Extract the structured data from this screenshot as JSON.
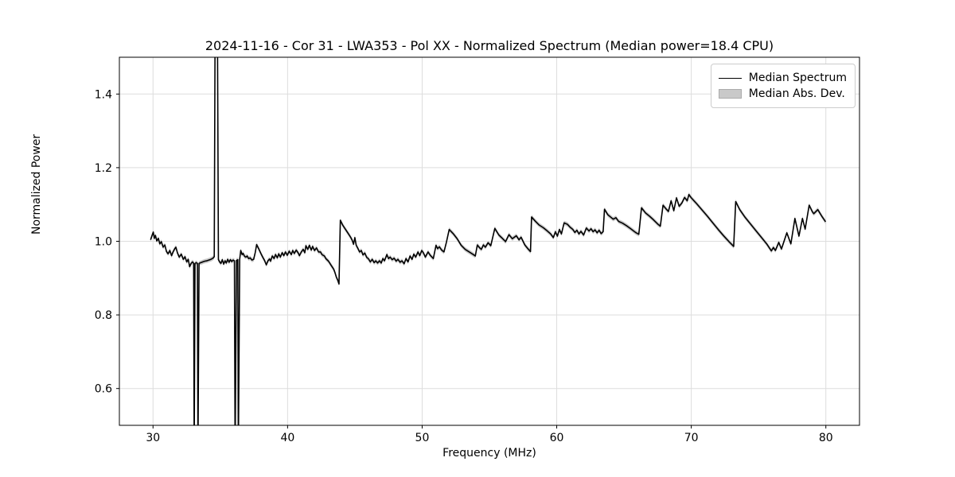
{
  "chart_data": {
    "type": "line",
    "title": "2024-11-16 - Cor 31 - LWA353 - Pol XX - Normalized Spectrum (Median power=18.4 CPU)",
    "xlabel": "Frequency (MHz)",
    "ylabel": "Normalized Power",
    "xlim": [
      27.5,
      82.5
    ],
    "ylim": [
      0.5,
      1.5
    ],
    "xticks": [
      {
        "v": 30,
        "label": "30"
      },
      {
        "v": 40,
        "label": "40"
      },
      {
        "v": 50,
        "label": "50"
      },
      {
        "v": 60,
        "label": "60"
      },
      {
        "v": 70,
        "label": "70"
      },
      {
        "v": 80,
        "label": "80"
      }
    ],
    "yticks": [
      {
        "v": 0.6,
        "label": "0.6"
      },
      {
        "v": 0.8,
        "label": "0.8"
      },
      {
        "v": 1.0,
        "label": "1.0"
      },
      {
        "v": 1.2,
        "label": "1.2"
      },
      {
        "v": 1.4,
        "label": "1.4"
      }
    ],
    "grid": true,
    "grid_color": "#dddddd",
    "spine_color": "#000000",
    "legend": {
      "position": "upper right",
      "items": [
        {
          "label": "Median Spectrum",
          "type": "line",
          "color": "#000000"
        },
        {
          "label": "Median Abs. Dev.",
          "type": "patch",
          "color": "#c9c9c9",
          "edge": "#ababab"
        }
      ]
    },
    "band": {
      "name": "Median Abs. Dev.",
      "halfwidth": 0.006,
      "color": "#c9c9c9"
    },
    "series": [
      {
        "name": "Median Spectrum",
        "color": "#000000",
        "width": 1.6,
        "points": [
          [
            29.82,
            1.004
          ],
          [
            29.95,
            1.018
          ],
          [
            30.02,
            1.025
          ],
          [
            30.1,
            1.008
          ],
          [
            30.18,
            1.016
          ],
          [
            30.28,
            1.001
          ],
          [
            30.4,
            1.008
          ],
          [
            30.5,
            0.993
          ],
          [
            30.62,
            0.999
          ],
          [
            30.75,
            0.984
          ],
          [
            30.88,
            0.99
          ],
          [
            31.0,
            0.972
          ],
          [
            31.12,
            0.966
          ],
          [
            31.25,
            0.975
          ],
          [
            31.38,
            0.961
          ],
          [
            31.5,
            0.972
          ],
          [
            31.62,
            0.98
          ],
          [
            31.7,
            0.984
          ],
          [
            31.82,
            0.968
          ],
          [
            31.95,
            0.957
          ],
          [
            32.1,
            0.965
          ],
          [
            32.25,
            0.951
          ],
          [
            32.38,
            0.958
          ],
          [
            32.5,
            0.944
          ],
          [
            32.62,
            0.951
          ],
          [
            32.72,
            0.931
          ],
          [
            32.85,
            0.941
          ],
          [
            32.95,
            0.944
          ],
          [
            33.02,
            0.94
          ],
          [
            33.06,
            0.42
          ],
          [
            33.12,
            0.94
          ],
          [
            33.22,
            0.942
          ],
          [
            33.3,
            0.94
          ],
          [
            33.34,
            0.42
          ],
          [
            33.42,
            0.94
          ],
          [
            33.55,
            0.942
          ],
          [
            33.7,
            0.944
          ],
          [
            33.85,
            0.946
          ],
          [
            34.0,
            0.947
          ],
          [
            34.15,
            0.949
          ],
          [
            34.3,
            0.951
          ],
          [
            34.45,
            0.954
          ],
          [
            34.55,
            0.958
          ],
          [
            34.62,
            1.65
          ],
          [
            34.78,
            1.65
          ],
          [
            34.86,
            0.95
          ],
          [
            34.95,
            0.944
          ],
          [
            35.05,
            0.94
          ],
          [
            35.15,
            0.95
          ],
          [
            35.25,
            0.938
          ],
          [
            35.35,
            0.947
          ],
          [
            35.45,
            0.941
          ],
          [
            35.55,
            0.951
          ],
          [
            35.65,
            0.943
          ],
          [
            35.75,
            0.95
          ],
          [
            35.85,
            0.945
          ],
          [
            35.95,
            0.949
          ],
          [
            36.05,
            0.947
          ],
          [
            36.1,
            0.42
          ],
          [
            36.2,
            0.948
          ],
          [
            36.3,
            0.95
          ],
          [
            36.34,
            0.42
          ],
          [
            36.44,
            0.951
          ],
          [
            36.52,
            0.975
          ],
          [
            36.62,
            0.964
          ],
          [
            36.7,
            0.967
          ],
          [
            36.8,
            0.959
          ],
          [
            36.9,
            0.957
          ],
          [
            37.0,
            0.96
          ],
          [
            37.1,
            0.953
          ],
          [
            37.22,
            0.955
          ],
          [
            37.35,
            0.949
          ],
          [
            37.48,
            0.951
          ],
          [
            37.6,
            0.97
          ],
          [
            37.7,
            0.991
          ],
          [
            37.85,
            0.98
          ],
          [
            38.0,
            0.968
          ],
          [
            38.15,
            0.957
          ],
          [
            38.3,
            0.947
          ],
          [
            38.42,
            0.936
          ],
          [
            38.54,
            0.947
          ],
          [
            38.66,
            0.952
          ],
          [
            38.74,
            0.946
          ],
          [
            38.86,
            0.96
          ],
          [
            39.0,
            0.953
          ],
          [
            39.1,
            0.964
          ],
          [
            39.24,
            0.955
          ],
          [
            39.34,
            0.966
          ],
          [
            39.46,
            0.957
          ],
          [
            39.6,
            0.969
          ],
          [
            39.72,
            0.961
          ],
          [
            39.84,
            0.971
          ],
          [
            39.98,
            0.962
          ],
          [
            40.12,
            0.973
          ],
          [
            40.28,
            0.964
          ],
          [
            40.38,
            0.975
          ],
          [
            40.5,
            0.967
          ],
          [
            40.64,
            0.976
          ],
          [
            40.78,
            0.969
          ],
          [
            40.88,
            0.961
          ],
          [
            41.02,
            0.971
          ],
          [
            41.16,
            0.978
          ],
          [
            41.28,
            0.969
          ],
          [
            41.36,
            0.988
          ],
          [
            41.5,
            0.978
          ],
          [
            41.62,
            0.989
          ],
          [
            41.76,
            0.976
          ],
          [
            41.86,
            0.986
          ],
          [
            42.0,
            0.975
          ],
          [
            42.15,
            0.982
          ],
          [
            42.3,
            0.971
          ],
          [
            42.45,
            0.971
          ],
          [
            42.55,
            0.964
          ],
          [
            42.74,
            0.96
          ],
          [
            42.84,
            0.953
          ],
          [
            43.04,
            0.946
          ],
          [
            43.23,
            0.935
          ],
          [
            43.43,
            0.924
          ],
          [
            43.53,
            0.914
          ],
          [
            43.62,
            0.903
          ],
          [
            43.72,
            0.895
          ],
          [
            43.82,
            0.884
          ],
          [
            43.92,
            1.057
          ],
          [
            44.11,
            1.043
          ],
          [
            44.31,
            1.032
          ],
          [
            44.51,
            1.021
          ],
          [
            44.7,
            1.01
          ],
          [
            44.8,
            1.003
          ],
          [
            44.9,
            0.992
          ],
          [
            45.0,
            1.01
          ],
          [
            45.1,
            0.989
          ],
          [
            45.22,
            0.981
          ],
          [
            45.35,
            0.971
          ],
          [
            45.48,
            0.975
          ],
          [
            45.6,
            0.963
          ],
          [
            45.74,
            0.968
          ],
          [
            45.88,
            0.956
          ],
          [
            46.0,
            0.953
          ],
          [
            46.15,
            0.944
          ],
          [
            46.29,
            0.951
          ],
          [
            46.43,
            0.942
          ],
          [
            46.55,
            0.947
          ],
          [
            46.69,
            0.941
          ],
          [
            46.83,
            0.947
          ],
          [
            46.96,
            0.941
          ],
          [
            47.08,
            0.953
          ],
          [
            47.2,
            0.947
          ],
          [
            47.38,
            0.964
          ],
          [
            47.5,
            0.953
          ],
          [
            47.62,
            0.957
          ],
          [
            47.77,
            0.95
          ],
          [
            47.92,
            0.954
          ],
          [
            48.07,
            0.946
          ],
          [
            48.2,
            0.951
          ],
          [
            48.36,
            0.943
          ],
          [
            48.5,
            0.947
          ],
          [
            48.66,
            0.939
          ],
          [
            48.8,
            0.953
          ],
          [
            48.95,
            0.944
          ],
          [
            49.1,
            0.96
          ],
          [
            49.25,
            0.951
          ],
          [
            49.38,
            0.965
          ],
          [
            49.52,
            0.957
          ],
          [
            49.69,
            0.971
          ],
          [
            49.82,
            0.961
          ],
          [
            49.97,
            0.975
          ],
          [
            50.1,
            0.968
          ],
          [
            50.24,
            0.957
          ],
          [
            50.44,
            0.971
          ],
          [
            50.6,
            0.962
          ],
          [
            50.83,
            0.953
          ],
          [
            51.03,
            0.989
          ],
          [
            51.15,
            0.98
          ],
          [
            51.28,
            0.985
          ],
          [
            51.45,
            0.976
          ],
          [
            51.62,
            0.971
          ],
          [
            51.8,
            0.997
          ],
          [
            52.01,
            1.032
          ],
          [
            52.3,
            1.021
          ],
          [
            52.6,
            1.007
          ],
          [
            52.9,
            0.989
          ],
          [
            53.2,
            0.978
          ],
          [
            53.5,
            0.971
          ],
          [
            53.8,
            0.964
          ],
          [
            53.95,
            0.96
          ],
          [
            54.1,
            0.99
          ],
          [
            54.25,
            0.983
          ],
          [
            54.4,
            0.978
          ],
          [
            54.55,
            0.99
          ],
          [
            54.7,
            0.984
          ],
          [
            54.9,
            0.996
          ],
          [
            55.1,
            0.988
          ],
          [
            55.4,
            1.035
          ],
          [
            55.7,
            1.017
          ],
          [
            55.9,
            1.01
          ],
          [
            56.2,
            0.999
          ],
          [
            56.45,
            1.018
          ],
          [
            56.7,
            1.007
          ],
          [
            57.0,
            1.015
          ],
          [
            57.2,
            1.004
          ],
          [
            57.35,
            1.011
          ],
          [
            57.63,
            0.99
          ],
          [
            57.83,
            0.981
          ],
          [
            58.05,
            0.972
          ],
          [
            58.13,
            1.066
          ],
          [
            58.4,
            1.055
          ],
          [
            58.7,
            1.044
          ],
          [
            59.0,
            1.037
          ],
          [
            59.3,
            1.028
          ],
          [
            59.55,
            1.02
          ],
          [
            59.75,
            1.01
          ],
          [
            59.9,
            1.026
          ],
          [
            60.05,
            1.014
          ],
          [
            60.2,
            1.032
          ],
          [
            60.35,
            1.02
          ],
          [
            60.55,
            1.05
          ],
          [
            60.8,
            1.046
          ],
          [
            61.0,
            1.038
          ],
          [
            61.2,
            1.032
          ],
          [
            61.35,
            1.024
          ],
          [
            61.5,
            1.03
          ],
          [
            61.65,
            1.02
          ],
          [
            61.8,
            1.027
          ],
          [
            62.0,
            1.017
          ],
          [
            62.2,
            1.036
          ],
          [
            62.4,
            1.028
          ],
          [
            62.55,
            1.034
          ],
          [
            62.7,
            1.026
          ],
          [
            62.85,
            1.031
          ],
          [
            63.0,
            1.023
          ],
          [
            63.15,
            1.03
          ],
          [
            63.3,
            1.021
          ],
          [
            63.45,
            1.026
          ],
          [
            63.55,
            1.087
          ],
          [
            63.8,
            1.072
          ],
          [
            64.0,
            1.066
          ],
          [
            64.2,
            1.06
          ],
          [
            64.4,
            1.064
          ],
          [
            64.6,
            1.054
          ],
          [
            64.9,
            1.049
          ],
          [
            65.2,
            1.042
          ],
          [
            65.5,
            1.034
          ],
          [
            65.75,
            1.027
          ],
          [
            65.9,
            1.023
          ],
          [
            66.1,
            1.019
          ],
          [
            66.3,
            1.091
          ],
          [
            66.6,
            1.077
          ],
          [
            66.9,
            1.068
          ],
          [
            67.2,
            1.058
          ],
          [
            67.5,
            1.047
          ],
          [
            67.7,
            1.041
          ],
          [
            67.9,
            1.098
          ],
          [
            68.1,
            1.089
          ],
          [
            68.3,
            1.081
          ],
          [
            68.5,
            1.11
          ],
          [
            68.7,
            1.083
          ],
          [
            68.9,
            1.118
          ],
          [
            69.1,
            1.095
          ],
          [
            69.3,
            1.104
          ],
          [
            69.5,
            1.119
          ],
          [
            69.7,
            1.11
          ],
          [
            69.82,
            1.127
          ],
          [
            70.0,
            1.118
          ],
          [
            70.4,
            1.102
          ],
          [
            70.8,
            1.085
          ],
          [
            71.2,
            1.068
          ],
          [
            71.6,
            1.05
          ],
          [
            72.0,
            1.032
          ],
          [
            72.4,
            1.015
          ],
          [
            72.8,
            0.999
          ],
          [
            73.15,
            0.986
          ],
          [
            73.3,
            1.108
          ],
          [
            73.6,
            1.086
          ],
          [
            74.0,
            1.065
          ],
          [
            74.4,
            1.047
          ],
          [
            74.8,
            1.029
          ],
          [
            75.2,
            1.011
          ],
          [
            75.6,
            0.993
          ],
          [
            75.95,
            0.974
          ],
          [
            76.1,
            0.983
          ],
          [
            76.25,
            0.975
          ],
          [
            76.4,
            0.988
          ],
          [
            76.5,
            0.997
          ],
          [
            76.7,
            0.979
          ],
          [
            77.1,
            1.023
          ],
          [
            77.4,
            0.993
          ],
          [
            77.7,
            1.062
          ],
          [
            78.0,
            1.014
          ],
          [
            78.26,
            1.062
          ],
          [
            78.46,
            1.033
          ],
          [
            78.76,
            1.098
          ],
          [
            79.0,
            1.08
          ],
          [
            79.1,
            1.075
          ],
          [
            79.4,
            1.086
          ],
          [
            79.7,
            1.068
          ],
          [
            79.98,
            1.053
          ]
        ]
      }
    ]
  }
}
